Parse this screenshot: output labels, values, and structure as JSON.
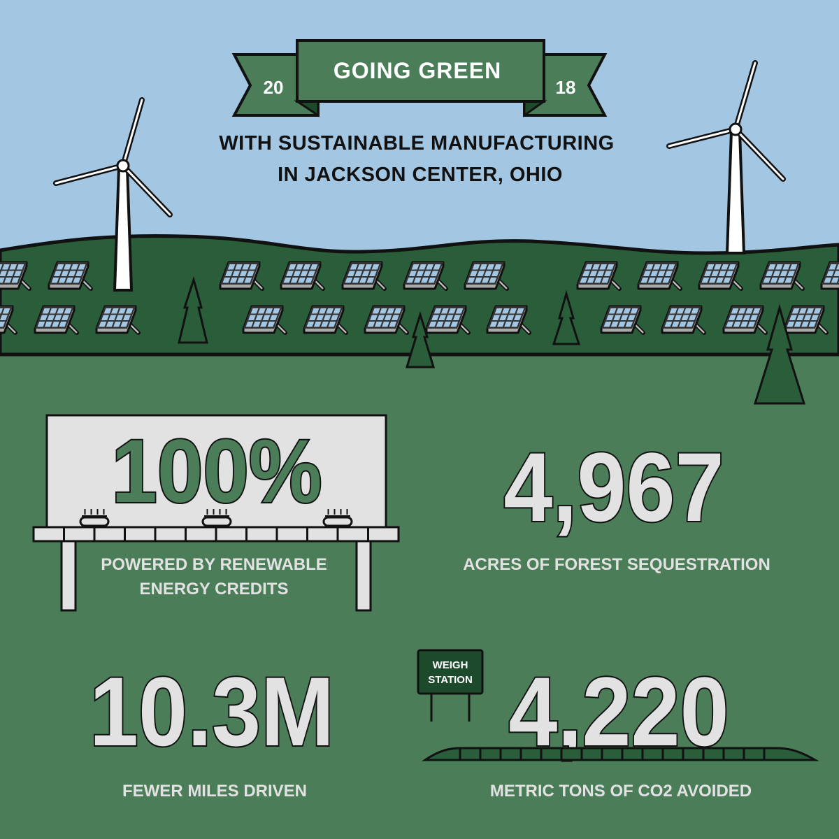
{
  "header": {
    "title": "GOING GREEN",
    "year_left": "20",
    "year_right": "18",
    "subtitle_line1": "WITH SUSTAINABLE MANUFACTURING",
    "subtitle_line2": "IN JACKSON CENTER, OHIO"
  },
  "stats": [
    {
      "value": "100%",
      "caption_line1": "POWERED BY RENEWABLE",
      "caption_line2": "ENERGY CREDITS"
    },
    {
      "value": "4,967",
      "caption_line1": "ACRES OF FOREST SEQUESTRATION"
    },
    {
      "value": "10.3M",
      "caption_line1": "FEWER MILES DRIVEN"
    },
    {
      "value": "4,220",
      "caption_line1": "METRIC TONS OF CO2 AVOIDED"
    }
  ],
  "weigh_sign": {
    "line1": "WEIGH",
    "line2": "STATION"
  },
  "colors": {
    "sky": "#a3c6e2",
    "hill": "#2a5e3a",
    "ground": "#4a7d58",
    "banner": "#4a7d58",
    "light": "#e2e2e2",
    "sign": "#1e4a2c"
  }
}
